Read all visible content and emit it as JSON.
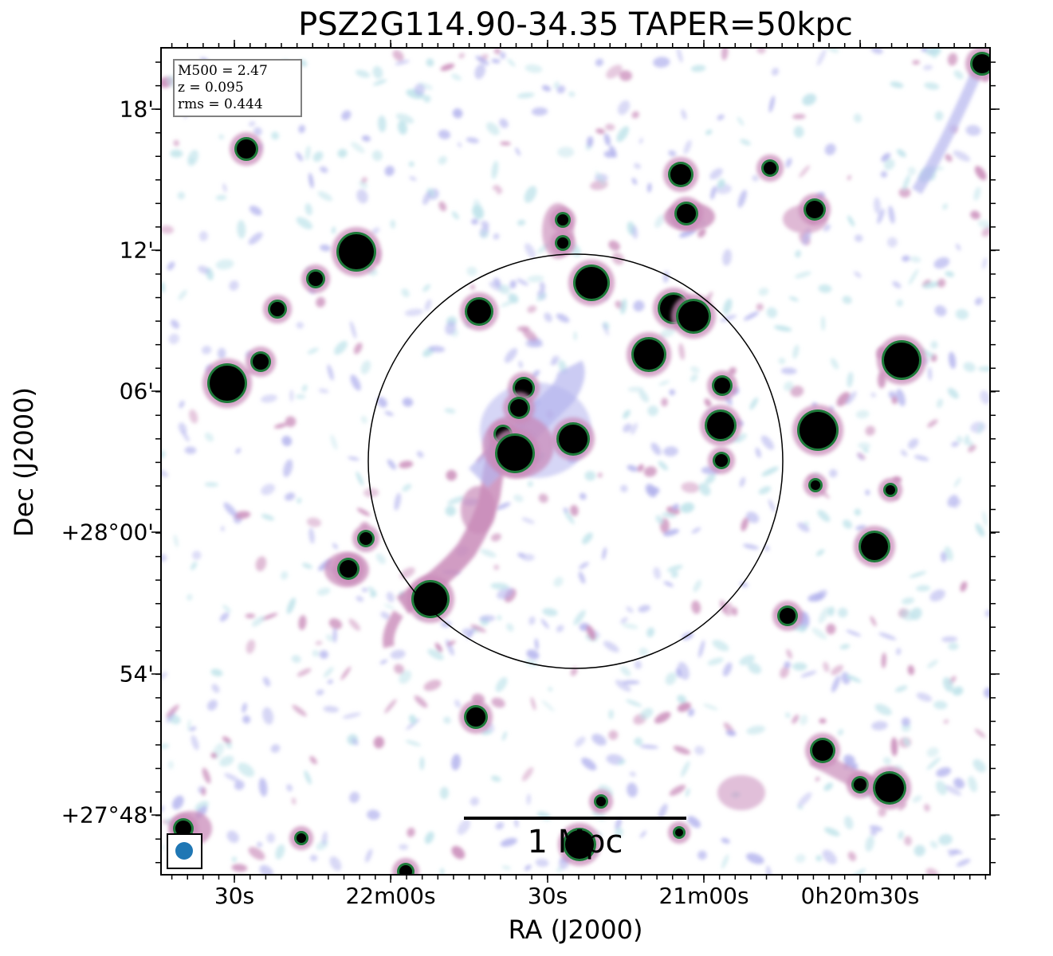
{
  "title": "PSZ2G114.90-34.35 TAPER=50kpc",
  "xlabel": "RA (J2000)",
  "ylabel": "Dec (J2000)",
  "xticks": [
    "30s",
    "22m00s",
    "30s",
    "21m00s",
    "0h20m30s"
  ],
  "yticks": [
    "18'",
    "12'",
    "06'",
    "+28°00'",
    "54'",
    "+27°48'"
  ],
  "info": {
    "m500": "M500 = 2.47",
    "z": "z = 0.095",
    "rms": "rms = 0.444"
  },
  "scalebar": {
    "label": "1 Mpc"
  },
  "colors": {
    "source_core": "#000000",
    "source_ring": "#1e7a3a",
    "emission_pink": "#c98bb9",
    "emission_lavender": "#b5b5ee",
    "emission_cyan": "#bfe3ea",
    "beam": "#1f77b4"
  }
}
